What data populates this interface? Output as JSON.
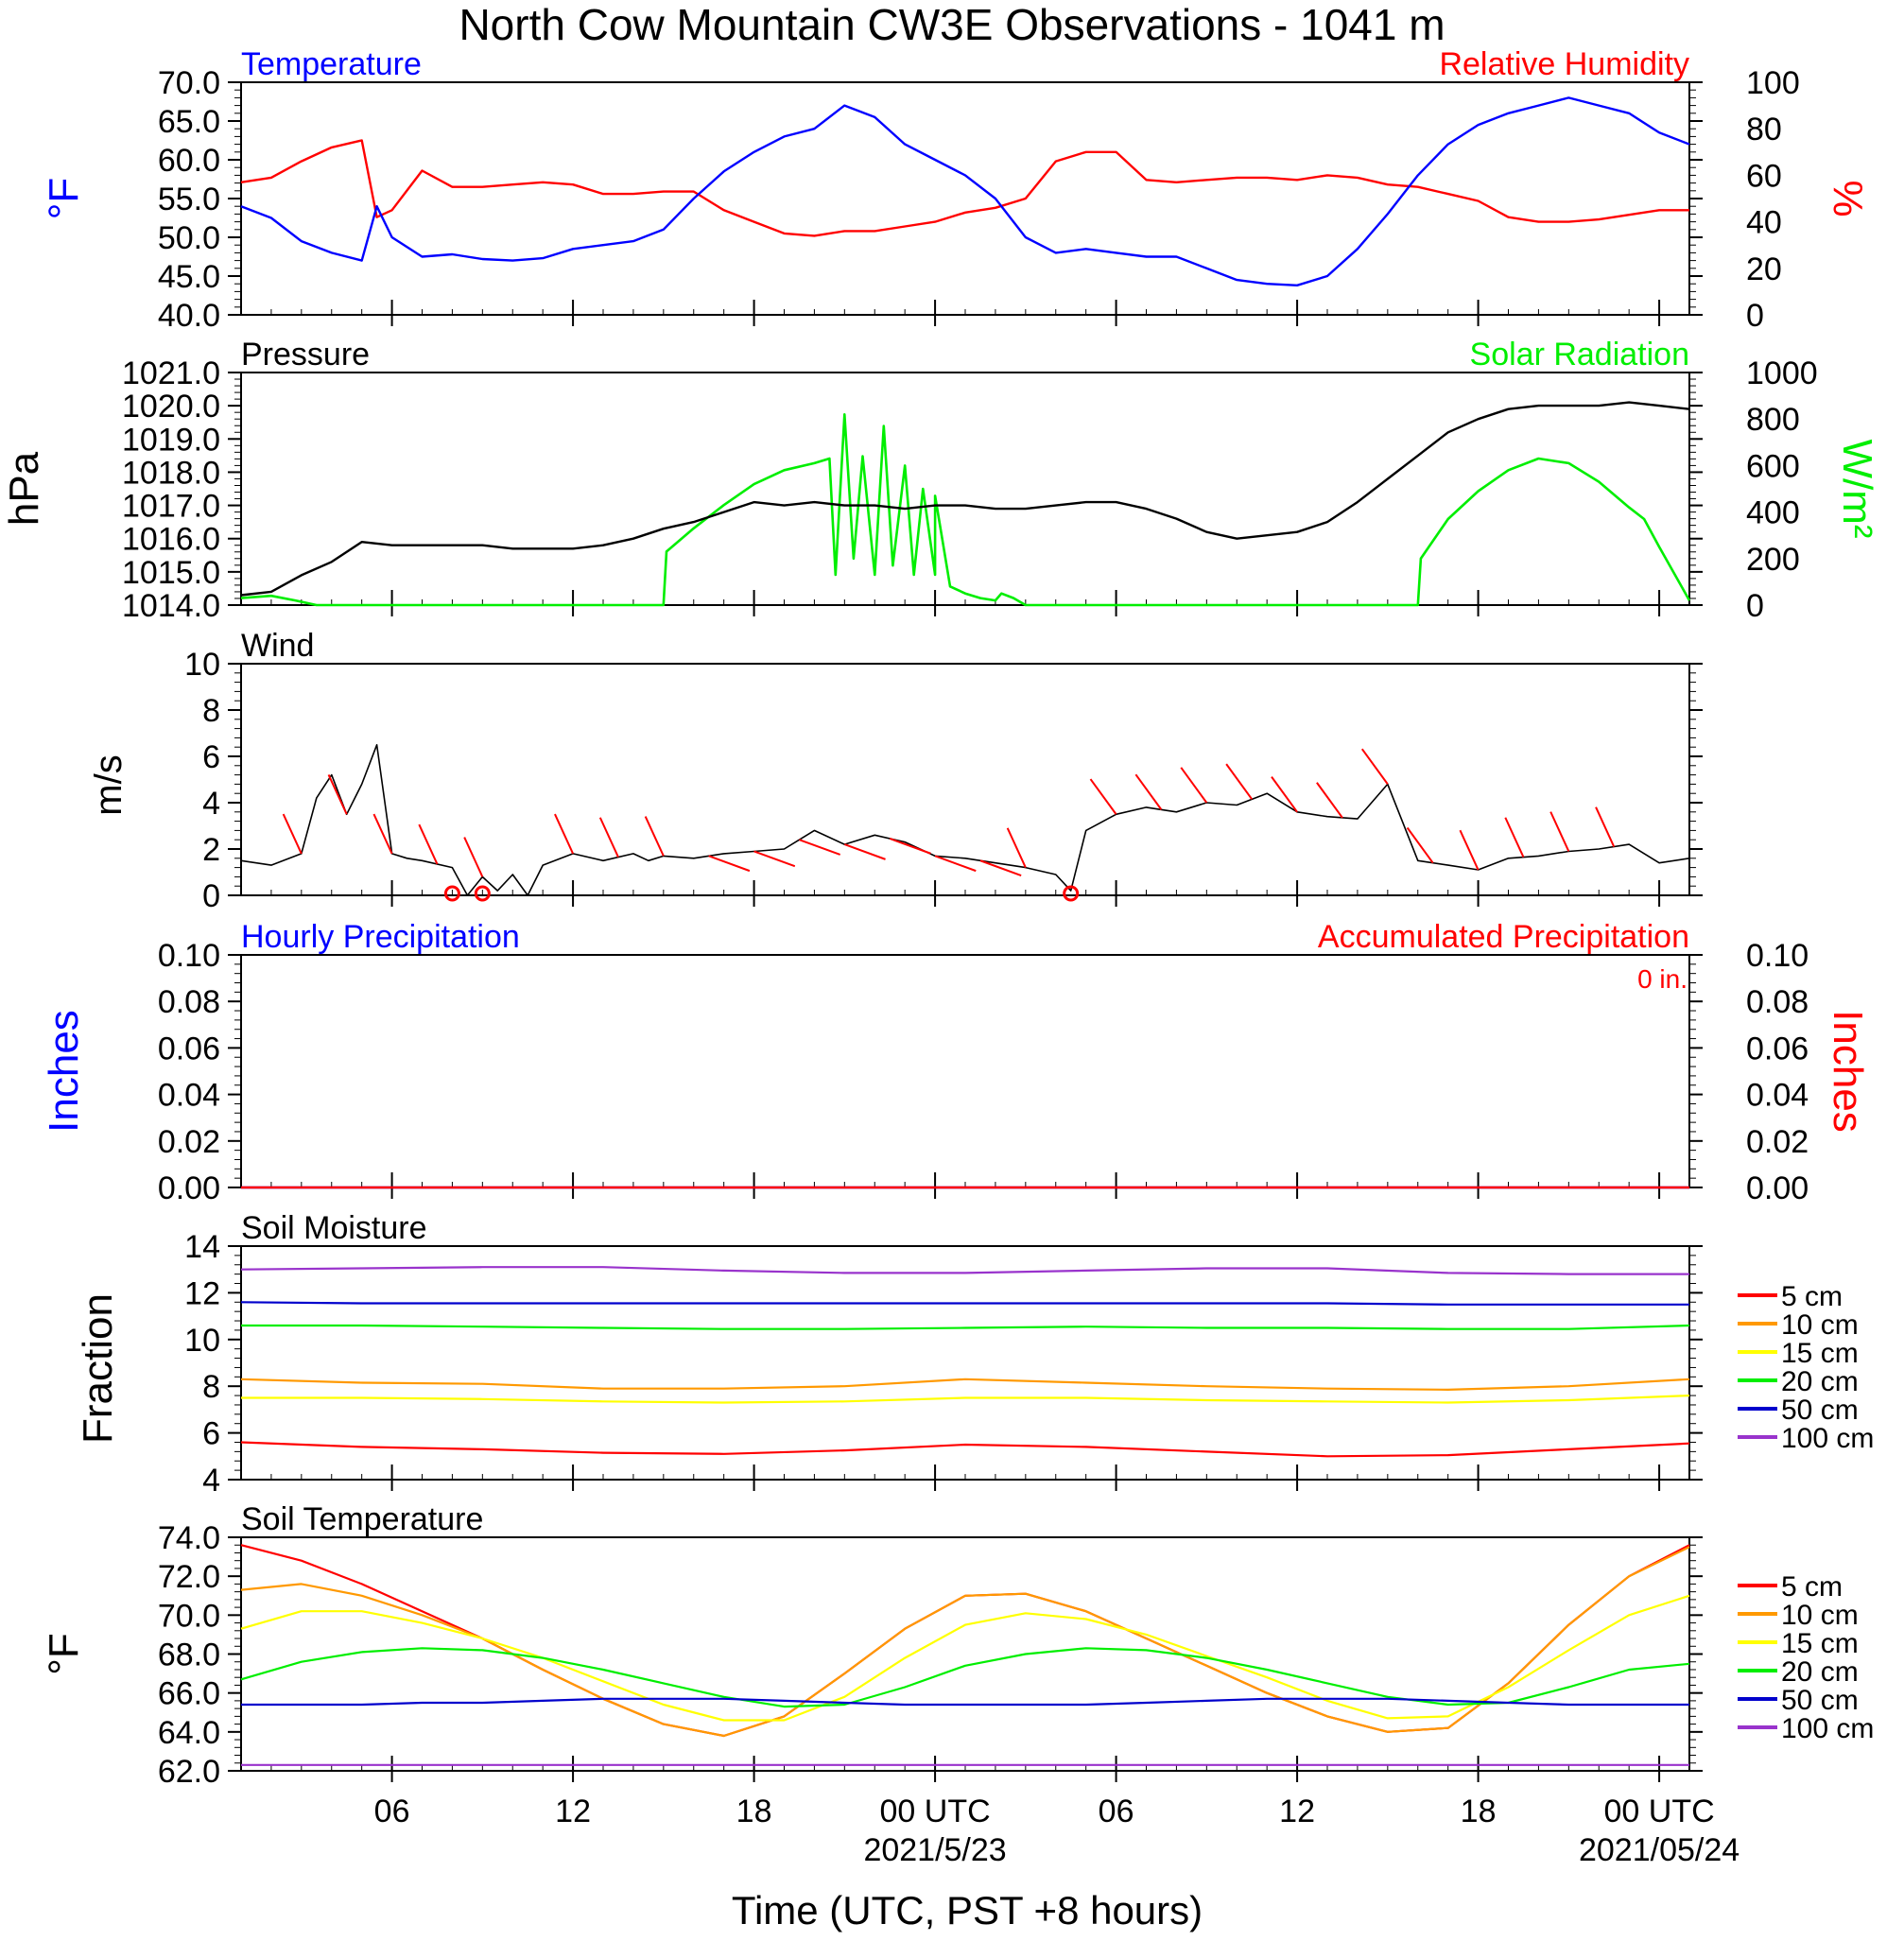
{
  "title": "North Cow Mountain CW3E Observations - 1041 m",
  "x_axis": {
    "title": "Time (UTC, PST +8 hours)",
    "range_hours": [
      0,
      48
    ],
    "ticks": [
      {
        "hour": 5,
        "label": "06",
        "date": ""
      },
      {
        "hour": 11,
        "label": "12",
        "date": ""
      },
      {
        "hour": 17,
        "label": "18",
        "date": ""
      },
      {
        "hour": 23,
        "label": "00 UTC",
        "date": "2021/5/23"
      },
      {
        "hour": 29,
        "label": "06",
        "date": ""
      },
      {
        "hour": 35,
        "label": "12",
        "date": ""
      },
      {
        "hour": 41,
        "label": "18",
        "date": ""
      },
      {
        "hour": 47,
        "label": "00 UTC",
        "date": "2021/05/24"
      }
    ]
  },
  "panels": {
    "temp_rh": {
      "left_title": "Temperature",
      "right_title": "Relative Humidity",
      "left_unit": "°F",
      "right_unit": "%",
      "left_ticks": [
        "70.0",
        "65.0",
        "60.0",
        "55.0",
        "50.0",
        "45.0",
        "40.0"
      ],
      "right_ticks": [
        "100",
        "80",
        "60",
        "40",
        "20",
        "0"
      ]
    },
    "pressure_solar": {
      "left_title": "Pressure",
      "right_title": "Solar Radiation",
      "left_unit": "hPa",
      "right_unit": "W/m²",
      "left_ticks": [
        "1021.0",
        "1020.0",
        "1019.0",
        "1018.0",
        "1017.0",
        "1016.0",
        "1015.0",
        "1014.0"
      ],
      "right_ticks": [
        "1000",
        "800",
        "600",
        "400",
        "200",
        "0"
      ]
    },
    "wind": {
      "left_title": "Wind",
      "left_unit": "m/s",
      "left_ticks": [
        "10",
        "8",
        "6",
        "4",
        "2",
        "0"
      ]
    },
    "precip": {
      "left_title": "Hourly Precipitation",
      "right_title": "Accumulated Precipitation",
      "accum_total": "0 in.",
      "left_unit": "Inches",
      "right_unit": "Inches",
      "left_ticks": [
        "0.10",
        "0.08",
        "0.06",
        "0.04",
        "0.02",
        "0.00"
      ],
      "right_ticks": [
        "0.10",
        "0.08",
        "0.06",
        "0.04",
        "0.02",
        "0.00"
      ]
    },
    "soil_moisture": {
      "left_title": "Soil Moisture",
      "left_unit": "Fraction",
      "left_ticks": [
        "14",
        "12",
        "10",
        "8",
        "6",
        "4"
      ],
      "legend": [
        "5 cm",
        "10 cm",
        "15 cm",
        "20 cm",
        "50 cm",
        "100 cm"
      ]
    },
    "soil_temp": {
      "left_title": "Soil Temperature",
      "left_unit": "°F",
      "left_ticks": [
        "74.0",
        "72.0",
        "70.0",
        "68.0",
        "66.0",
        "64.0",
        "62.0"
      ],
      "legend": [
        "5 cm",
        "10 cm",
        "15 cm",
        "20 cm",
        "50 cm",
        "100 cm"
      ]
    }
  },
  "colors": {
    "temperature": "#0000ff",
    "humidity": "#ff0000",
    "pressure": "#000000",
    "solar": "#00ee00",
    "wind_speed": "#000000",
    "wind_barb": "#ff0000",
    "precip_hourly": "#0000ff",
    "precip_accum": "#ff0000",
    "depth_5cm": "#ff0000",
    "depth_10cm": "#ff9900",
    "depth_15cm": "#ffff00",
    "depth_20cm": "#00ee00",
    "depth_50cm": "#0000cc",
    "depth_100cm": "#9933cc"
  },
  "chart_data": [
    {
      "type": "line",
      "panel": "temp_rh",
      "x_units": "hours since 2021-05-22 01 UTC",
      "series": [
        {
          "name": "Temperature",
          "axis": "left",
          "unit": "°F",
          "x": [
            0,
            1,
            2,
            3,
            4,
            4.5,
            5,
            6,
            7,
            8,
            9,
            10,
            11,
            12,
            13,
            14,
            15,
            16,
            17,
            18,
            19,
            20,
            21,
            22,
            23,
            24,
            25,
            26,
            27,
            28,
            29,
            30,
            31,
            32,
            33,
            34,
            35,
            36,
            37,
            38,
            39,
            40,
            41,
            42,
            43,
            44,
            45,
            46,
            47,
            48
          ],
          "y": [
            54,
            52.5,
            49.5,
            48,
            47,
            54,
            50,
            47.5,
            47.8,
            47.2,
            47,
            47.3,
            48.5,
            49,
            49.5,
            51,
            55,
            58.5,
            61,
            63,
            64,
            67,
            65.5,
            62,
            60,
            58,
            55,
            50,
            48,
            48.5,
            48,
            47.5,
            47.5,
            46,
            44.5,
            44,
            43.8,
            45,
            48.5,
            53,
            58,
            62,
            64.5,
            66,
            67,
            68,
            67,
            66,
            63.5,
            62
          ]
        },
        {
          "name": "Relative Humidity",
          "axis": "right",
          "unit": "%",
          "x": [
            0,
            1,
            2,
            3,
            4,
            4.5,
            5,
            6,
            7,
            8,
            9,
            10,
            11,
            12,
            13,
            14,
            15,
            16,
            17,
            18,
            19,
            20,
            21,
            22,
            23,
            24,
            25,
            26,
            27,
            28,
            29,
            30,
            31,
            32,
            33,
            34,
            35,
            36,
            37,
            38,
            39,
            40,
            41,
            42,
            43,
            44,
            45,
            46,
            47,
            48
          ],
          "y": [
            57,
            59,
            66,
            72,
            75,
            42,
            45,
            62,
            55,
            55,
            56,
            57,
            56,
            52,
            52,
            53,
            53,
            45,
            40,
            35,
            34,
            36,
            36,
            38,
            40,
            44,
            46,
            50,
            66,
            70,
            70,
            58,
            57,
            58,
            59,
            59,
            58,
            60,
            59,
            56,
            55,
            52,
            49,
            42,
            40,
            40,
            41,
            43,
            45,
            45
          ]
        }
      ]
    },
    {
      "type": "line",
      "panel": "pressure_solar",
      "x_units": "hours since 2021-05-22 01 UTC",
      "series": [
        {
          "name": "Pressure",
          "axis": "left",
          "unit": "hPa",
          "x": [
            0,
            1,
            2,
            3,
            4,
            5,
            6,
            7,
            8,
            9,
            10,
            11,
            12,
            13,
            14,
            15,
            16,
            17,
            18,
            19,
            20,
            21,
            22,
            23,
            24,
            25,
            26,
            27,
            28,
            29,
            30,
            31,
            32,
            33,
            34,
            35,
            36,
            37,
            38,
            39,
            40,
            41,
            42,
            43,
            44,
            45,
            46,
            47,
            48
          ],
          "y": [
            1014.3,
            1014.4,
            1014.9,
            1015.3,
            1015.9,
            1015.8,
            1015.8,
            1015.8,
            1015.8,
            1015.7,
            1015.7,
            1015.7,
            1015.8,
            1016.0,
            1016.3,
            1016.5,
            1016.8,
            1017.1,
            1017.0,
            1017.1,
            1017.0,
            1017.0,
            1016.9,
            1017.0,
            1017.0,
            1016.9,
            1016.9,
            1017.0,
            1017.1,
            1017.1,
            1016.9,
            1016.6,
            1016.2,
            1016.0,
            1016.1,
            1016.2,
            1016.5,
            1017.1,
            1017.8,
            1018.5,
            1019.2,
            1019.6,
            1019.9,
            1020.0,
            1020.0,
            1020.0,
            1020.1,
            1020.0,
            1019.9
          ]
        },
        {
          "name": "Solar Radiation",
          "axis": "right",
          "unit": "W/m2",
          "x": [
            0,
            1,
            1.8,
            2.5,
            14,
            14.1,
            15,
            16,
            17,
            18,
            19,
            19.5,
            19.7,
            20,
            20.3,
            20.6,
            21,
            21.3,
            21.6,
            22,
            22.3,
            22.6,
            23,
            23,
            23.5,
            24,
            24.5,
            25,
            25.2,
            25.6,
            26,
            39,
            39.1,
            40,
            41,
            42,
            43,
            44,
            45,
            46,
            46.5,
            47,
            48
          ],
          "y": [
            30,
            40,
            20,
            0,
            0,
            230,
            330,
            430,
            520,
            580,
            610,
            630,
            130,
            820,
            200,
            640,
            130,
            770,
            170,
            600,
            130,
            500,
            130,
            470,
            80,
            50,
            30,
            20,
            50,
            30,
            0,
            0,
            200,
            370,
            490,
            580,
            630,
            610,
            530,
            420,
            370,
            250,
            20
          ]
        }
      ]
    },
    {
      "type": "line",
      "panel": "wind",
      "x_units": "hours since 2021-05-22 01 UTC",
      "series": [
        {
          "name": "Wind",
          "unit": "m/s",
          "x": [
            0,
            1,
            2,
            2.5,
            3,
            3.5,
            4,
            4.5,
            5,
            5.5,
            6,
            7,
            7.5,
            8,
            8.5,
            9,
            9.5,
            10,
            11,
            12,
            13,
            13.5,
            14,
            15,
            16,
            17,
            18,
            19,
            20,
            21,
            22,
            23,
            24,
            25,
            26,
            27,
            27.5,
            28,
            29,
            30,
            31,
            32,
            33,
            34,
            35,
            36,
            37,
            38,
            39,
            40,
            41,
            42,
            43,
            44,
            45,
            46,
            47,
            48
          ],
          "y": [
            1.5,
            1.3,
            1.8,
            4.2,
            5.2,
            3.5,
            4.8,
            6.5,
            1.8,
            1.6,
            1.5,
            1.2,
            0,
            0.8,
            0.2,
            0.9,
            0,
            1.3,
            1.8,
            1.5,
            1.8,
            1.5,
            1.7,
            1.6,
            1.8,
            1.9,
            2.0,
            2.8,
            2.2,
            2.6,
            2.3,
            1.7,
            1.6,
            1.4,
            1.2,
            0.9,
            0.2,
            2.8,
            3.5,
            3.8,
            3.6,
            4.0,
            3.9,
            4.4,
            3.6,
            3.4,
            3.3,
            4.8,
            1.5,
            1.3,
            1.1,
            1.6,
            1.7,
            1.9,
            2.0,
            2.2,
            1.4,
            1.6
          ]
        }
      ],
      "calm": [
        7,
        8,
        27.5
      ]
    },
    {
      "type": "line",
      "panel": "precip",
      "x_units": "hours since 2021-05-22 01 UTC",
      "series": [
        {
          "name": "Hourly Precipitation",
          "axis": "left",
          "unit": "in",
          "x": [
            0,
            48
          ],
          "y": [
            0,
            0
          ]
        },
        {
          "name": "Accumulated Precipitation",
          "axis": "right",
          "unit": "in",
          "x": [
            0,
            48
          ],
          "y": [
            0,
            0
          ]
        }
      ]
    },
    {
      "type": "line",
      "panel": "soil_moisture",
      "x_units": "hours since 2021-05-22 01 UTC",
      "x": [
        0,
        4,
        8,
        12,
        16,
        20,
        24,
        28,
        32,
        36,
        40,
        44,
        48
      ],
      "series": [
        {
          "name": "5 cm",
          "y": [
            5.6,
            5.4,
            5.3,
            5.15,
            5.1,
            5.25,
            5.5,
            5.4,
            5.2,
            5.0,
            5.05,
            5.3,
            5.55
          ]
        },
        {
          "name": "10 cm",
          "y": [
            8.3,
            8.15,
            8.1,
            7.9,
            7.9,
            8.0,
            8.3,
            8.15,
            8.0,
            7.9,
            7.85,
            8.0,
            8.3
          ]
        },
        {
          "name": "15 cm",
          "y": [
            7.5,
            7.5,
            7.45,
            7.35,
            7.3,
            7.35,
            7.5,
            7.5,
            7.4,
            7.35,
            7.3,
            7.4,
            7.6
          ]
        },
        {
          "name": "20 cm",
          "y": [
            10.6,
            10.6,
            10.55,
            10.5,
            10.45,
            10.45,
            10.5,
            10.55,
            10.5,
            10.5,
            10.45,
            10.45,
            10.6
          ]
        },
        {
          "name": "50 cm",
          "y": [
            11.6,
            11.55,
            11.55,
            11.55,
            11.55,
            11.55,
            11.55,
            11.55,
            11.55,
            11.55,
            11.5,
            11.5,
            11.5
          ]
        },
        {
          "name": "100 cm",
          "y": [
            13.0,
            13.05,
            13.1,
            13.1,
            12.95,
            12.85,
            12.85,
            12.95,
            13.05,
            13.05,
            12.85,
            12.8,
            12.8
          ]
        }
      ]
    },
    {
      "type": "line",
      "panel": "soil_temp",
      "x_units": "hours since 2021-05-22 01 UTC",
      "x": [
        0,
        2,
        4,
        6,
        8,
        10,
        12,
        14,
        16,
        18,
        20,
        22,
        24,
        26,
        28,
        30,
        32,
        34,
        36,
        38,
        40,
        42,
        44,
        46,
        48
      ],
      "series": [
        {
          "name": "5 cm",
          "y": [
            73.6,
            72.8,
            71.6,
            70.2,
            68.8,
            67.2,
            65.7,
            64.4,
            63.8,
            64.8,
            67.0,
            69.3,
            71.0,
            71.1,
            70.2,
            68.8,
            67.4,
            66.0,
            64.8,
            64.0,
            64.2,
            66.5,
            69.5,
            72.0,
            73.6
          ]
        },
        {
          "name": "10 cm",
          "y": [
            71.3,
            71.6,
            71.0,
            70.0,
            68.8,
            67.2,
            65.7,
            64.4,
            63.8,
            64.8,
            67.0,
            69.3,
            71.0,
            71.1,
            70.2,
            68.8,
            67.4,
            66.0,
            64.8,
            64.0,
            64.2,
            66.5,
            69.5,
            72.0,
            73.5
          ]
        },
        {
          "name": "15 cm",
          "y": [
            69.3,
            70.2,
            70.2,
            69.6,
            68.8,
            67.8,
            66.6,
            65.4,
            64.6,
            64.6,
            65.8,
            67.8,
            69.5,
            70.1,
            69.8,
            69.0,
            67.9,
            66.8,
            65.6,
            64.7,
            64.8,
            66.3,
            68.2,
            70.0,
            71.0
          ]
        },
        {
          "name": "20 cm",
          "y": [
            66.7,
            67.6,
            68.1,
            68.3,
            68.2,
            67.8,
            67.2,
            66.5,
            65.8,
            65.3,
            65.4,
            66.3,
            67.4,
            68.0,
            68.3,
            68.2,
            67.8,
            67.2,
            66.5,
            65.8,
            65.4,
            65.5,
            66.3,
            67.2,
            67.5
          ]
        },
        {
          "name": "50 cm",
          "y": [
            65.4,
            65.4,
            65.4,
            65.5,
            65.5,
            65.6,
            65.7,
            65.7,
            65.7,
            65.6,
            65.5,
            65.4,
            65.4,
            65.4,
            65.4,
            65.5,
            65.6,
            65.7,
            65.7,
            65.7,
            65.6,
            65.5,
            65.4,
            65.4,
            65.4
          ]
        },
        {
          "name": "100 cm",
          "y": [
            62.3,
            62.3,
            62.3,
            62.3,
            62.3,
            62.3,
            62.3,
            62.3,
            62.3,
            62.3,
            62.3,
            62.3,
            62.3,
            62.3,
            62.3,
            62.3,
            62.3,
            62.3,
            62.3,
            62.3,
            62.3,
            62.3,
            62.3,
            62.3,
            62.3
          ]
        }
      ]
    }
  ]
}
